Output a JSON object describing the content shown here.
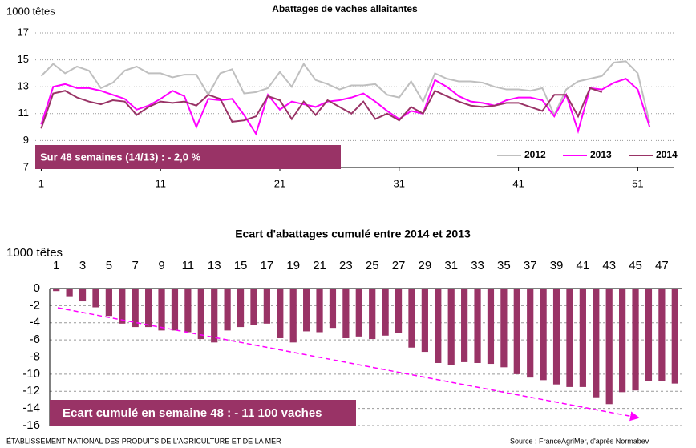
{
  "chart_data": [
    {
      "type": "line",
      "title": "Abattages de vaches allaitantes",
      "y_label": "1000 têtes",
      "annotation": "Sur 48 semaines (14/13) : - 2,0 %",
      "x": [
        1,
        2,
        3,
        4,
        5,
        6,
        7,
        8,
        9,
        10,
        11,
        12,
        13,
        14,
        15,
        16,
        17,
        18,
        19,
        20,
        21,
        22,
        23,
        24,
        25,
        26,
        27,
        28,
        29,
        30,
        31,
        32,
        33,
        34,
        35,
        36,
        37,
        38,
        39,
        40,
        41,
        42,
        43,
        44,
        45,
        46,
        47,
        48,
        49,
        50,
        51,
        52
      ],
      "xlim": [
        0.5,
        54
      ],
      "xticks": [
        1,
        11,
        21,
        31,
        41,
        51
      ],
      "ylim": [
        7,
        17
      ],
      "yticks": [
        7,
        9,
        11,
        13,
        15,
        17
      ],
      "grid": true,
      "legend": "lower right",
      "series": [
        {
          "name": "2012",
          "color": "#bfbfbf",
          "values": [
            13.8,
            14.7,
            14.0,
            14.5,
            14.2,
            12.9,
            13.3,
            14.2,
            14.5,
            14.0,
            14.0,
            13.7,
            13.9,
            13.9,
            12.4,
            14.0,
            14.3,
            12.5,
            12.6,
            12.9,
            14.1,
            13.0,
            14.7,
            13.5,
            13.2,
            12.8,
            13.1,
            13.1,
            13.2,
            12.4,
            12.2,
            13.4,
            11.9,
            14.0,
            13.6,
            13.4,
            13.4,
            13.3,
            13.0,
            12.8,
            12.8,
            12.7,
            12.9,
            10.9,
            12.8,
            13.4,
            13.6,
            13.8,
            14.8,
            14.9,
            14.0,
            10.3
          ]
        },
        {
          "name": "2013",
          "color": "#ff00ff",
          "values": [
            10.2,
            13.0,
            13.2,
            12.9,
            12.9,
            12.7,
            12.4,
            12.1,
            11.3,
            11.6,
            12.1,
            12.7,
            12.3,
            10.0,
            12.1,
            12.0,
            12.1,
            10.9,
            9.5,
            12.4,
            11.3,
            11.9,
            11.7,
            11.5,
            11.9,
            12.0,
            12.2,
            12.5,
            11.9,
            11.2,
            10.6,
            11.2,
            11.0,
            13.5,
            13.0,
            12.3,
            11.9,
            11.8,
            11.6,
            12.0,
            12.2,
            12.2,
            12.0,
            10.8,
            12.4,
            9.7,
            12.9,
            12.8,
            13.3,
            13.6,
            12.8,
            10.0
          ]
        },
        {
          "name": "2014",
          "color": "#993366",
          "values": [
            9.9,
            12.5,
            12.7,
            12.2,
            11.9,
            11.7,
            12.0,
            11.9,
            10.9,
            11.5,
            11.9,
            11.8,
            11.9,
            11.6,
            12.4,
            12.1,
            10.4,
            10.5,
            10.8,
            12.3,
            12.0,
            10.6,
            11.9,
            10.9,
            12.0,
            11.5,
            11.0,
            11.9,
            10.6,
            11.0,
            10.5,
            11.5,
            11.0,
            12.7,
            12.3,
            11.9,
            11.6,
            11.5,
            11.6,
            11.8,
            11.8,
            11.5,
            11.2,
            12.4,
            12.4,
            10.8,
            12.9,
            12.6,
            null,
            null,
            null,
            null
          ]
        }
      ]
    },
    {
      "type": "bar",
      "title": "Ecart d'abattages cumulé entre 2014 et 2013",
      "y_label": "1000 têtes",
      "annotation": "Ecart cumulé en semaine 48 : - 11 100 vaches",
      "categories": [
        1,
        null,
        3,
        null,
        5,
        null,
        7,
        null,
        9,
        null,
        11,
        null,
        13,
        null,
        15,
        null,
        17,
        null,
        19,
        null,
        21,
        null,
        23,
        null,
        25,
        null,
        27,
        null,
        29,
        null,
        31,
        null,
        33,
        null,
        35,
        null,
        37,
        null,
        39,
        null,
        41,
        null,
        43,
        null,
        45,
        null,
        47,
        null
      ],
      "values": [
        -0.3,
        -0.9,
        -1.5,
        -2.2,
        -3.2,
        -4.1,
        -4.5,
        -4.5,
        -4.9,
        -4.9,
        -5.1,
        -5.9,
        -6.3,
        -4.9,
        -4.5,
        -4.3,
        -4.1,
        -5.8,
        -6.3,
        -5.0,
        -5.1,
        -4.6,
        -5.8,
        -5.6,
        -5.9,
        -5.5,
        -5.2,
        -6.9,
        -7.4,
        -8.7,
        -8.9,
        -8.6,
        -8.7,
        -8.8,
        -9.2,
        -10.0,
        -10.4,
        -10.7,
        -11.2,
        -11.5,
        -11.5,
        -12.7,
        -13.5,
        -12.1,
        -11.9,
        -10.8,
        -10.8,
        -11.1
      ],
      "color": "#993366",
      "ylim": [
        -16,
        0
      ],
      "yticks": [
        0,
        -2,
        -4,
        -6,
        -8,
        -10,
        -12,
        -14,
        -16
      ],
      "grid": true
    }
  ],
  "footer": {
    "left": "ÉTABLISSEMENT NATIONAL DES PRODUITS DE L'AGRICULTURE ET DE LA MER",
    "right": "Source : FranceAgriMer, d'après Normabev"
  }
}
